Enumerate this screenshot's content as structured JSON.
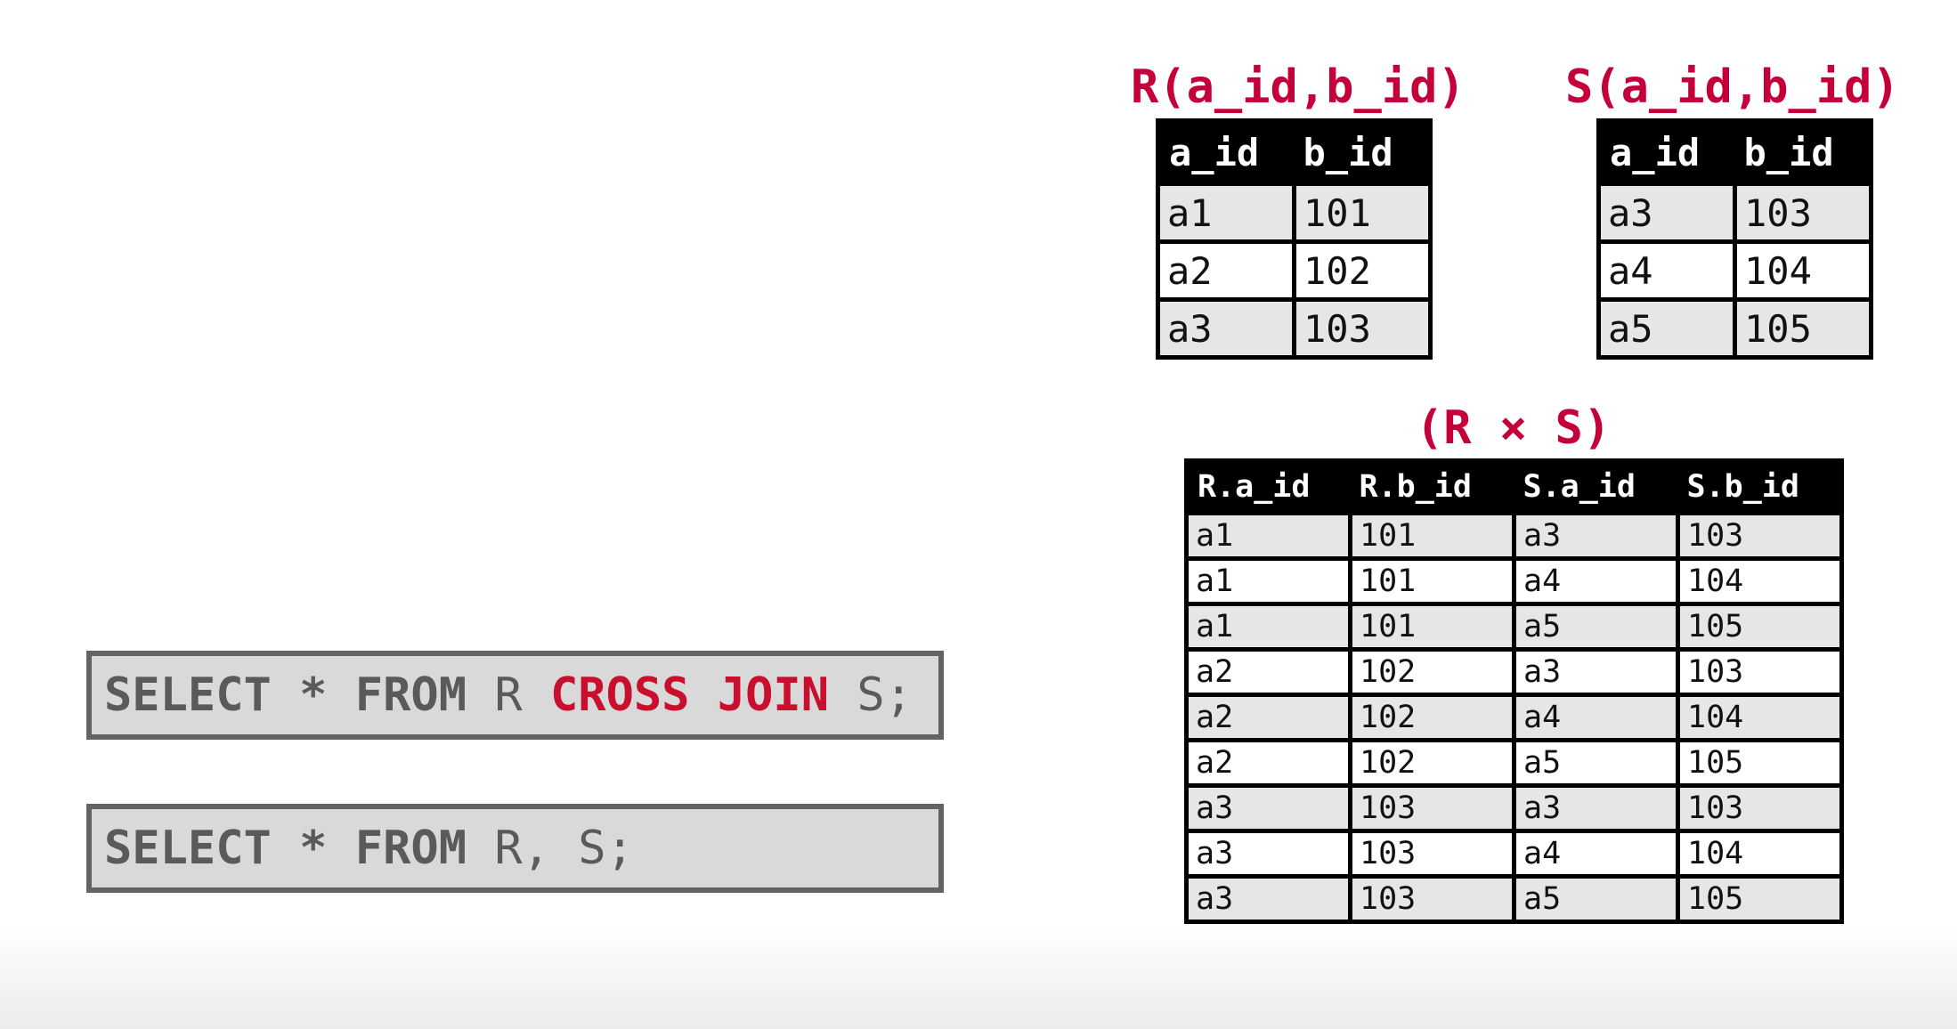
{
  "tables": {
    "r": {
      "title": "R(a_id,b_id)",
      "headers": [
        "a_id",
        "b_id"
      ],
      "rows": [
        [
          "a1",
          "101"
        ],
        [
          "a2",
          "102"
        ],
        [
          "a3",
          "103"
        ]
      ]
    },
    "s": {
      "title": "S(a_id,b_id)",
      "headers": [
        "a_id",
        "b_id"
      ],
      "rows": [
        [
          "a3",
          "103"
        ],
        [
          "a4",
          "104"
        ],
        [
          "a5",
          "105"
        ]
      ]
    },
    "product": {
      "title": "(R × S)",
      "headers": [
        "R.a_id",
        "R.b_id",
        "S.a_id",
        "S.b_id"
      ],
      "rows": [
        [
          "a1",
          "101",
          "a3",
          "103"
        ],
        [
          "a1",
          "101",
          "a4",
          "104"
        ],
        [
          "a1",
          "101",
          "a5",
          "105"
        ],
        [
          "a2",
          "102",
          "a3",
          "103"
        ],
        [
          "a2",
          "102",
          "a4",
          "104"
        ],
        [
          "a2",
          "102",
          "a5",
          "105"
        ],
        [
          "a3",
          "103",
          "a3",
          "103"
        ],
        [
          "a3",
          "103",
          "a4",
          "104"
        ],
        [
          "a3",
          "103",
          "a5",
          "105"
        ]
      ]
    }
  },
  "queries": {
    "cross_join": {
      "select": "SELECT",
      "star": "*",
      "from": "FROM",
      "r": "R",
      "cross": "CROSS",
      "join": "JOIN",
      "s": "S;"
    },
    "comma": {
      "select": "SELECT",
      "star": "*",
      "from": "FROM",
      "r": "R,",
      "s": "S;"
    }
  },
  "colors": {
    "accent": "#c4003a",
    "code_bg": "#d9d9d9",
    "code_border": "#636363"
  }
}
